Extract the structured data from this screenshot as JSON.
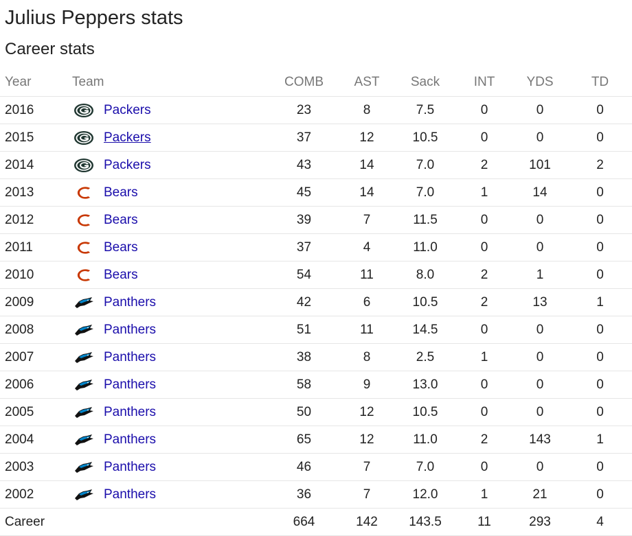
{
  "page": {
    "title": "Julius Peppers stats",
    "subtitle": "Career stats"
  },
  "colors": {
    "link": "#1a0dab",
    "header_text": "#777777",
    "divider": "#e6e6e6",
    "packers_green": "#203731",
    "packers_gold": "#ffb612",
    "bears_orange": "#c83803",
    "panthers_blue": "#0085ca"
  },
  "table": {
    "headers": {
      "year": "Year",
      "team": "Team",
      "comb": "COMB",
      "ast": "AST",
      "sack": "Sack",
      "int": "INT",
      "yds": "YDS",
      "td": "TD"
    },
    "rows": [
      {
        "year": "2016",
        "team": "Packers",
        "logo": "packers-logo-icon",
        "comb": "23",
        "ast": "8",
        "sack": "7.5",
        "int": "0",
        "yds": "0",
        "td": "0"
      },
      {
        "year": "2015",
        "team": "Packers",
        "logo": "packers-logo-icon",
        "comb": "37",
        "ast": "12",
        "sack": "10.5",
        "int": "0",
        "yds": "0",
        "td": "0",
        "hovered": true
      },
      {
        "year": "2014",
        "team": "Packers",
        "logo": "packers-logo-icon",
        "comb": "43",
        "ast": "14",
        "sack": "7.0",
        "int": "2",
        "yds": "101",
        "td": "2"
      },
      {
        "year": "2013",
        "team": "Bears",
        "logo": "bears-logo-icon",
        "comb": "45",
        "ast": "14",
        "sack": "7.0",
        "int": "1",
        "yds": "14",
        "td": "0"
      },
      {
        "year": "2012",
        "team": "Bears",
        "logo": "bears-logo-icon",
        "comb": "39",
        "ast": "7",
        "sack": "11.5",
        "int": "0",
        "yds": "0",
        "td": "0"
      },
      {
        "year": "2011",
        "team": "Bears",
        "logo": "bears-logo-icon",
        "comb": "37",
        "ast": "4",
        "sack": "11.0",
        "int": "0",
        "yds": "0",
        "td": "0"
      },
      {
        "year": "2010",
        "team": "Bears",
        "logo": "bears-logo-icon",
        "comb": "54",
        "ast": "11",
        "sack": "8.0",
        "int": "2",
        "yds": "1",
        "td": "0"
      },
      {
        "year": "2009",
        "team": "Panthers",
        "logo": "panthers-logo-icon",
        "comb": "42",
        "ast": "6",
        "sack": "10.5",
        "int": "2",
        "yds": "13",
        "td": "1"
      },
      {
        "year": "2008",
        "team": "Panthers",
        "logo": "panthers-logo-icon",
        "comb": "51",
        "ast": "11",
        "sack": "14.5",
        "int": "0",
        "yds": "0",
        "td": "0"
      },
      {
        "year": "2007",
        "team": "Panthers",
        "logo": "panthers-logo-icon",
        "comb": "38",
        "ast": "8",
        "sack": "2.5",
        "int": "1",
        "yds": "0",
        "td": "0"
      },
      {
        "year": "2006",
        "team": "Panthers",
        "logo": "panthers-logo-icon",
        "comb": "58",
        "ast": "9",
        "sack": "13.0",
        "int": "0",
        "yds": "0",
        "td": "0"
      },
      {
        "year": "2005",
        "team": "Panthers",
        "logo": "panthers-logo-icon",
        "comb": "50",
        "ast": "12",
        "sack": "10.5",
        "int": "0",
        "yds": "0",
        "td": "0"
      },
      {
        "year": "2004",
        "team": "Panthers",
        "logo": "panthers-logo-icon",
        "comb": "65",
        "ast": "12",
        "sack": "11.0",
        "int": "2",
        "yds": "143",
        "td": "1"
      },
      {
        "year": "2003",
        "team": "Panthers",
        "logo": "panthers-logo-icon",
        "comb": "46",
        "ast": "7",
        "sack": "7.0",
        "int": "0",
        "yds": "0",
        "td": "0"
      },
      {
        "year": "2002",
        "team": "Panthers",
        "logo": "panthers-logo-icon",
        "comb": "36",
        "ast": "7",
        "sack": "12.0",
        "int": "1",
        "yds": "21",
        "td": "0"
      }
    ],
    "career": {
      "label": "Career",
      "comb": "664",
      "ast": "142",
      "sack": "143.5",
      "int": "11",
      "yds": "293",
      "td": "4"
    }
  }
}
